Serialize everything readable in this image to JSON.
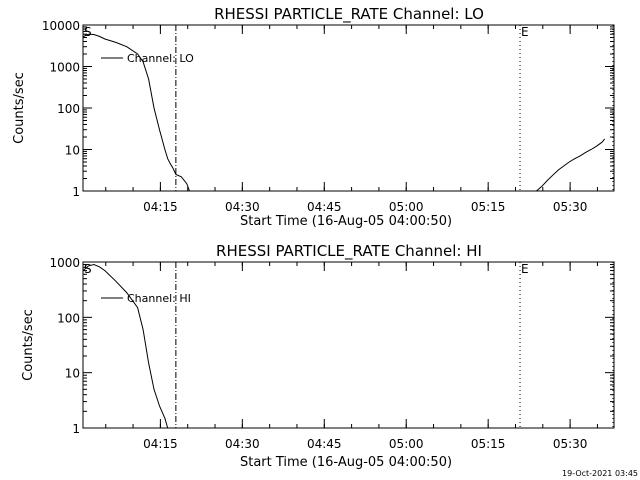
{
  "chart_data": [
    {
      "type": "line",
      "title": "RHESSI PARTICLE_RATE Channel: LO",
      "xlabel": "Start Time (16-Aug-05 04:00:50)",
      "ylabel": "Counts/sec",
      "y_scale": "log",
      "ylim": [
        1,
        10000
      ],
      "xlim_minutes_after_start": [
        0,
        97.2
      ],
      "yticks": [
        "1",
        "10",
        "100",
        "1000",
        "10000"
      ],
      "xticks": [
        "04:15",
        "04:30",
        "04:45",
        "05:00",
        "05:15",
        "05:30"
      ],
      "legend": {
        "label": "Channel: LO",
        "position": "top-left"
      },
      "markers": [
        {
          "label": "S",
          "time": "04:00:50",
          "line": "none"
        },
        {
          "time": "04:17:50",
          "line": "dash-dot"
        },
        {
          "label": "E",
          "time": "05:20:50",
          "line": "dotted"
        },
        {
          "time": "05:37:50",
          "line": "dotted"
        }
      ],
      "series": [
        {
          "name": "Channel: LO",
          "segments": [
            {
              "x_min": [
                0,
                1,
                2,
                3,
                4,
                6,
                8,
                10,
                11,
                12,
                13,
                14,
                15,
                15.5,
                16,
                16.5,
                17,
                18,
                19,
                19.5
              ],
              "y": [
                5200,
                6000,
                5900,
                5300,
                4600,
                3800,
                3000,
                2000,
                1300,
                500,
                100,
                30,
                10,
                6,
                4.5,
                3.5,
                2.5,
                2.2,
                1.5,
                1
              ]
            },
            {
              "x_min": [
                83,
                84,
                85,
                86,
                87,
                88,
                89,
                90,
                91,
                92,
                93,
                94,
                95,
                95.5
              ],
              "y": [
                1,
                1.3,
                1.8,
                2.4,
                3.2,
                4,
                5,
                6,
                7,
                8.5,
                10,
                12,
                15,
                18
              ]
            }
          ]
        }
      ]
    },
    {
      "type": "line",
      "title": "RHESSI PARTICLE_RATE Channel: HI",
      "xlabel": "Start Time (16-Aug-05 04:00:50)",
      "ylabel": "Counts/sec",
      "y_scale": "log",
      "ylim": [
        1,
        1000
      ],
      "xlim_minutes_after_start": [
        0,
        97.2
      ],
      "yticks": [
        "1",
        "10",
        "100",
        "1000"
      ],
      "xticks": [
        "04:15",
        "04:30",
        "04:45",
        "05:00",
        "05:15",
        "05:30"
      ],
      "legend": {
        "label": "Channel: HI",
        "position": "top-left"
      },
      "markers": [
        {
          "label": "S",
          "time": "04:00:50",
          "line": "none"
        },
        {
          "time": "04:17:50",
          "line": "dash-dot"
        },
        {
          "label": "E",
          "time": "05:20:50",
          "line": "dotted"
        },
        {
          "time": "05:37:50",
          "line": "dotted"
        }
      ],
      "series": [
        {
          "name": "Channel: HI",
          "segments": [
            {
              "x_min": [
                0,
                1,
                2,
                3,
                4,
                6,
                8,
                10,
                11,
                12,
                13,
                14,
                15,
                15.5
              ],
              "y": [
                700,
                850,
                900,
                820,
                700,
                450,
                280,
                150,
                60,
                15,
                5,
                2.5,
                1.5,
                1
              ]
            }
          ]
        }
      ]
    }
  ],
  "footer": {
    "timestamp": "19-Oct-2021 03:45"
  }
}
